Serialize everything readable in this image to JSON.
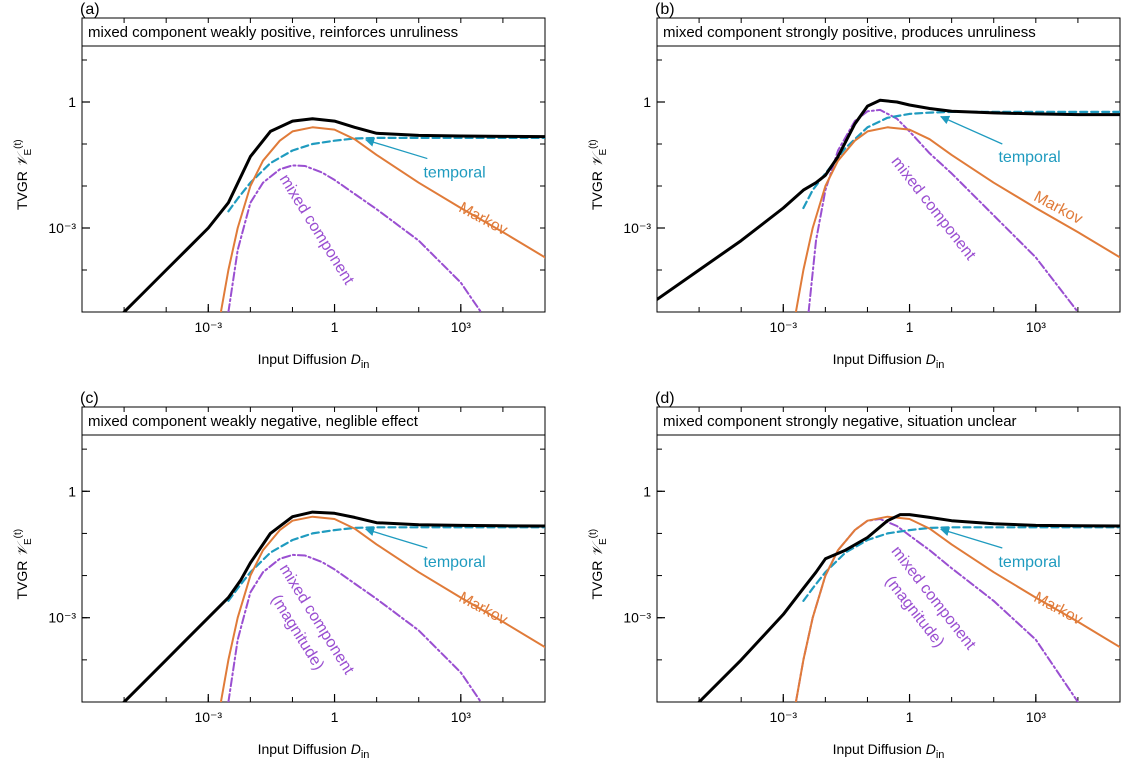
{
  "colors": {
    "total": "#000000",
    "markov": "#e07b39",
    "temporal": "#1f9bbf",
    "mixed": "#9a4fd1",
    "frame": "#000000"
  },
  "chart_data": [
    {
      "type": "line",
      "panel_label": "(a)",
      "title": "mixed component weakly positive, reinforces unruliness",
      "xlabel": "Input Diffusion D_in",
      "xlabel_main": "Input Diffusion ",
      "xlabel_var": "D",
      "xlabel_sub": "in",
      "ylabel": "TVGR  𝒱_E^(t)",
      "ylabel_main": "TVGR",
      "ylabel_var": "𝒱",
      "ylabel_sub": "E",
      "ylabel_sup": "(t)",
      "x_scale": "log",
      "y_scale": "log",
      "xlim": [
        1e-06,
        100000.0
      ],
      "ylim": [
        1e-05,
        100
      ],
      "x_ticks": [
        {
          "value": 0.001,
          "label": "10⁻³"
        },
        {
          "value": 1,
          "label": "1"
        },
        {
          "value": 1000,
          "label": "10³"
        }
      ],
      "y_ticks": [
        {
          "value": 0.001,
          "label": "10⁻³"
        },
        {
          "value": 1,
          "label": "1"
        }
      ],
      "annotations": {
        "temporal": "temporal",
        "markov": "Markov",
        "mixed": "mixed component",
        "mixed_sub": ""
      },
      "series": [
        {
          "key": "total",
          "style": "solid",
          "x": [
            1e-06,
            3e-05,
            0.0001,
            0.0003,
            0.001,
            0.003,
            0.01,
            0.03,
            0.1,
            0.3,
            1,
            3,
            10,
            100,
            1000,
            10000.0,
            100000.0
          ],
          "y": [
            1e-06,
            3e-05,
            0.0001,
            0.0003,
            0.001,
            0.004,
            0.05,
            0.2,
            0.35,
            0.4,
            0.35,
            0.25,
            0.18,
            0.16,
            0.155,
            0.152,
            0.15
          ]
        },
        {
          "key": "markov",
          "name": "Markov",
          "style": "solid",
          "x": [
            0.002,
            0.003,
            0.005,
            0.01,
            0.02,
            0.05,
            0.1,
            0.3,
            1,
            3,
            10,
            100,
            1000,
            10000.0,
            100000.0
          ],
          "y": [
            1e-05,
            0.0001,
            0.001,
            0.01,
            0.04,
            0.12,
            0.2,
            0.25,
            0.22,
            0.13,
            0.055,
            0.012,
            0.003,
            0.0008,
            0.0002
          ]
        },
        {
          "key": "temporal",
          "name": "temporal",
          "style": "dash",
          "x": [
            0.003,
            0.005,
            0.01,
            0.03,
            0.1,
            0.3,
            1,
            3,
            10,
            100,
            1000,
            10000.0,
            100000.0
          ],
          "y": [
            0.0025,
            0.005,
            0.012,
            0.035,
            0.07,
            0.1,
            0.12,
            0.135,
            0.14,
            0.14,
            0.14,
            0.14,
            0.14
          ]
        },
        {
          "key": "mixed",
          "name": "mixed component",
          "style": "dashdot",
          "x": [
            0.003,
            0.005,
            0.01,
            0.02,
            0.05,
            0.1,
            0.2,
            0.5,
            1,
            3,
            10,
            100,
            1000,
            3000
          ],
          "y": [
            1e-05,
            0.0003,
            0.004,
            0.012,
            0.025,
            0.031,
            0.03,
            0.021,
            0.014,
            0.0065,
            0.0028,
            0.0005,
            5e-05,
            1e-05
          ]
        }
      ]
    },
    {
      "type": "line",
      "panel_label": "(b)",
      "title": "mixed component strongly positive, produces unruliness",
      "xlabel": "Input Diffusion D_in",
      "xlabel_main": "Input Diffusion ",
      "xlabel_var": "D",
      "xlabel_sub": "in",
      "ylabel": "TVGR  𝒱_E^(t)",
      "ylabel_main": "TVGR",
      "ylabel_var": "𝒱",
      "ylabel_sub": "E",
      "ylabel_sup": "(t)",
      "x_scale": "log",
      "y_scale": "log",
      "xlim": [
        1e-06,
        100000.0
      ],
      "ylim": [
        1e-05,
        100
      ],
      "x_ticks": [
        {
          "value": 0.001,
          "label": "10⁻³"
        },
        {
          "value": 1,
          "label": "1"
        },
        {
          "value": 1000,
          "label": "10³"
        }
      ],
      "y_ticks": [
        {
          "value": 0.001,
          "label": "10⁻³"
        },
        {
          "value": 1,
          "label": "1"
        }
      ],
      "annotations": {
        "temporal": "temporal",
        "markov": "Markov",
        "mixed": "mixed component",
        "mixed_sub": ""
      },
      "series": [
        {
          "key": "total",
          "style": "solid",
          "x": [
            1e-06,
            1e-05,
            0.0001,
            0.001,
            0.003,
            0.006,
            0.01,
            0.02,
            0.05,
            0.1,
            0.2,
            0.5,
            1,
            3,
            10,
            100,
            1000,
            10000.0,
            100000.0
          ],
          "y": [
            2e-05,
            0.0001,
            0.0005,
            0.003,
            0.008,
            0.012,
            0.018,
            0.05,
            0.3,
            0.8,
            1.1,
            1.0,
            0.85,
            0.7,
            0.6,
            0.55,
            0.52,
            0.5,
            0.5
          ]
        },
        {
          "key": "markov",
          "name": "Markov",
          "style": "solid",
          "x": [
            0.002,
            0.003,
            0.005,
            0.01,
            0.02,
            0.05,
            0.1,
            0.3,
            1,
            3,
            10,
            100,
            1000,
            10000.0,
            100000.0
          ],
          "y": [
            1e-05,
            0.0001,
            0.001,
            0.01,
            0.04,
            0.12,
            0.2,
            0.25,
            0.22,
            0.13,
            0.055,
            0.012,
            0.003,
            0.0008,
            0.0002
          ]
        },
        {
          "key": "temporal",
          "name": "temporal",
          "style": "dash",
          "x": [
            0.003,
            0.005,
            0.01,
            0.03,
            0.1,
            0.3,
            1,
            3,
            10,
            100,
            1000,
            10000.0,
            100000.0
          ],
          "y": [
            0.003,
            0.008,
            0.02,
            0.08,
            0.25,
            0.42,
            0.52,
            0.56,
            0.58,
            0.58,
            0.58,
            0.58,
            0.58
          ]
        },
        {
          "key": "mixed",
          "name": "mixed component",
          "style": "dashdot",
          "x": [
            0.004,
            0.006,
            0.01,
            0.02,
            0.05,
            0.1,
            0.2,
            0.5,
            1,
            3,
            10,
            100,
            1000,
            10000.0
          ],
          "y": [
            1e-05,
            0.0005,
            0.008,
            0.07,
            0.35,
            0.6,
            0.65,
            0.4,
            0.2,
            0.06,
            0.02,
            0.002,
            0.0002,
            1e-05
          ]
        }
      ]
    },
    {
      "type": "line",
      "panel_label": "(c)",
      "title": "mixed component weakly negative, neglible effect",
      "xlabel": "Input Diffusion D_in",
      "xlabel_main": "Input Diffusion ",
      "xlabel_var": "D",
      "xlabel_sub": "in",
      "ylabel": "TVGR  𝒱_E^(t)",
      "ylabel_main": "TVGR",
      "ylabel_var": "𝒱",
      "ylabel_sub": "E",
      "ylabel_sup": "(t)",
      "x_scale": "log",
      "y_scale": "log",
      "xlim": [
        1e-06,
        100000.0
      ],
      "ylim": [
        1e-05,
        100
      ],
      "x_ticks": [
        {
          "value": 0.001,
          "label": "10⁻³"
        },
        {
          "value": 1,
          "label": "1"
        },
        {
          "value": 1000,
          "label": "10³"
        }
      ],
      "y_ticks": [
        {
          "value": 0.001,
          "label": "10⁻³"
        },
        {
          "value": 1,
          "label": "1"
        }
      ],
      "annotations": {
        "temporal": "temporal",
        "markov": "Markov",
        "mixed": "mixed component",
        "mixed_sub": "(magnitude)"
      },
      "series": [
        {
          "key": "total",
          "style": "solid",
          "x": [
            1e-06,
            3e-05,
            0.0001,
            0.0003,
            0.001,
            0.003,
            0.006,
            0.01,
            0.03,
            0.1,
            0.3,
            1,
            3,
            10,
            100,
            1000,
            10000.0,
            100000.0
          ],
          "y": [
            1e-06,
            3e-05,
            0.0001,
            0.0003,
            0.001,
            0.003,
            0.008,
            0.02,
            0.1,
            0.25,
            0.32,
            0.3,
            0.24,
            0.18,
            0.16,
            0.155,
            0.152,
            0.15
          ]
        },
        {
          "key": "markov",
          "name": "Markov",
          "style": "solid",
          "x": [
            0.002,
            0.003,
            0.005,
            0.01,
            0.02,
            0.05,
            0.1,
            0.3,
            1,
            3,
            10,
            100,
            1000,
            10000.0,
            100000.0
          ],
          "y": [
            1e-05,
            0.0001,
            0.001,
            0.01,
            0.04,
            0.12,
            0.2,
            0.25,
            0.22,
            0.13,
            0.055,
            0.012,
            0.003,
            0.0008,
            0.0002
          ]
        },
        {
          "key": "temporal",
          "name": "temporal",
          "style": "dash",
          "x": [
            0.003,
            0.005,
            0.01,
            0.03,
            0.1,
            0.3,
            1,
            3,
            10,
            100,
            1000,
            10000.0,
            100000.0
          ],
          "y": [
            0.0025,
            0.005,
            0.012,
            0.035,
            0.07,
            0.1,
            0.12,
            0.135,
            0.14,
            0.14,
            0.14,
            0.14,
            0.14
          ]
        },
        {
          "key": "mixed",
          "name": "mixed component (magnitude)",
          "style": "dashdot",
          "x": [
            0.003,
            0.005,
            0.01,
            0.02,
            0.05,
            0.1,
            0.2,
            0.5,
            1,
            3,
            10,
            100,
            1000,
            3000
          ],
          "y": [
            1e-05,
            0.0003,
            0.004,
            0.012,
            0.025,
            0.031,
            0.03,
            0.021,
            0.014,
            0.0065,
            0.0028,
            0.0005,
            5e-05,
            1e-05
          ]
        }
      ]
    },
    {
      "type": "line",
      "panel_label": "(d)",
      "title": "mixed component strongly negative, situation unclear",
      "xlabel": "Input Diffusion D_in",
      "xlabel_main": "Input Diffusion ",
      "xlabel_var": "D",
      "xlabel_sub": "in",
      "ylabel": "TVGR  𝒱_E^(t)",
      "ylabel_main": "TVGR",
      "ylabel_var": "𝒱",
      "ylabel_sub": "E",
      "ylabel_sup": "(t)",
      "x_scale": "log",
      "y_scale": "log",
      "xlim": [
        1e-06,
        100000.0
      ],
      "ylim": [
        1e-05,
        100
      ],
      "x_ticks": [
        {
          "value": 0.001,
          "label": "10⁻³"
        },
        {
          "value": 1,
          "label": "1"
        },
        {
          "value": 1000,
          "label": "10³"
        }
      ],
      "y_ticks": [
        {
          "value": 0.001,
          "label": "10⁻³"
        },
        {
          "value": 1,
          "label": "1"
        }
      ],
      "annotations": {
        "temporal": "temporal",
        "markov": "Markov",
        "mixed": "mixed component",
        "mixed_sub": "(magnitude)"
      },
      "series": [
        {
          "key": "total",
          "style": "solid",
          "x": [
            1e-06,
            1e-05,
            0.0001,
            0.001,
            0.003,
            0.006,
            0.01,
            0.03,
            0.1,
            0.3,
            0.6,
            1,
            3,
            10,
            100,
            1000,
            10000.0,
            100000.0
          ],
          "y": [
            1e-06,
            1e-05,
            0.0001,
            0.0012,
            0.005,
            0.012,
            0.025,
            0.04,
            0.08,
            0.2,
            0.28,
            0.28,
            0.24,
            0.2,
            0.17,
            0.155,
            0.152,
            0.15
          ]
        },
        {
          "key": "markov",
          "name": "Markov",
          "style": "solid",
          "x": [
            0.002,
            0.003,
            0.005,
            0.01,
            0.02,
            0.05,
            0.1,
            0.3,
            1,
            3,
            10,
            100,
            1000,
            10000.0,
            100000.0
          ],
          "y": [
            1e-05,
            0.0001,
            0.001,
            0.01,
            0.04,
            0.12,
            0.2,
            0.25,
            0.22,
            0.13,
            0.055,
            0.012,
            0.003,
            0.0008,
            0.0002
          ]
        },
        {
          "key": "temporal",
          "name": "temporal",
          "style": "dash",
          "x": [
            0.003,
            0.005,
            0.01,
            0.03,
            0.1,
            0.3,
            1,
            3,
            10,
            100,
            1000,
            10000.0,
            100000.0
          ],
          "y": [
            0.0025,
            0.005,
            0.012,
            0.035,
            0.07,
            0.1,
            0.12,
            0.135,
            0.14,
            0.14,
            0.14,
            0.14,
            0.14
          ]
        },
        {
          "key": "mixed",
          "name": "mixed component (magnitude)",
          "style": "dashdot",
          "x": [
            0.002,
            0.003,
            0.005,
            0.01,
            0.02,
            0.05,
            0.1,
            0.2,
            0.5,
            1,
            3,
            10,
            100,
            1000,
            10000.0
          ],
          "y": [
            1e-05,
            0.0001,
            0.001,
            0.01,
            0.04,
            0.12,
            0.2,
            0.22,
            0.15,
            0.09,
            0.04,
            0.015,
            0.0025,
            0.0003,
            1e-05
          ]
        }
      ]
    }
  ]
}
